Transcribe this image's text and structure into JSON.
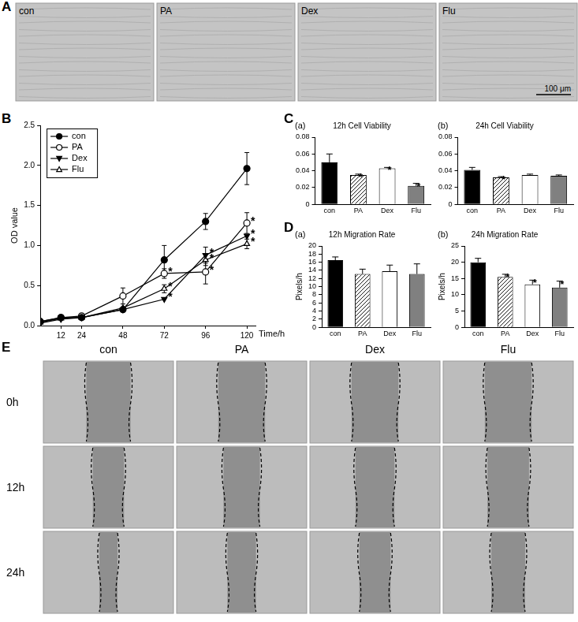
{
  "panel_a": {
    "label": "A",
    "images": [
      "con",
      "PA",
      "Dex",
      "Flu"
    ],
    "scale_bar": "100 μm"
  },
  "chart_data": [
    {
      "panel": "B",
      "type": "line",
      "x_label": "Time/h",
      "y_label": "OD value",
      "x": [
        0,
        12,
        24,
        48,
        72,
        96,
        120
      ],
      "xlim": [
        0,
        125
      ],
      "xticks": [
        12,
        24,
        48,
        72,
        96,
        120
      ],
      "ylim": [
        0,
        2.5
      ],
      "yticks": [
        {
          "value": 0,
          "label": "0.0"
        },
        0.5,
        {
          "value": 1,
          "label": "1.0"
        },
        1.5,
        {
          "value": 2,
          "label": "2.0"
        },
        2.5
      ],
      "grid": false,
      "legend": "upper left",
      "series": [
        {
          "name": "con",
          "color": "#000000",
          "marker": "circle",
          "line_style": "solid",
          "values": [
            0.05,
            0.1,
            0.1,
            0.2,
            0.82,
            1.3,
            1.96
          ],
          "errors": [
            null,
            null,
            null,
            null,
            0.18,
            0.1,
            0.2
          ]
        },
        {
          "name": "PA",
          "color": "#000000",
          "marker": "circle-open",
          "line_style": "solid",
          "values": [
            0.05,
            0.1,
            0.12,
            0.37,
            0.65,
            0.67,
            1.28
          ],
          "errors": [
            null,
            null,
            null,
            0.1,
            0.06,
            0.15,
            0.13
          ],
          "significance": [
            null,
            null,
            null,
            null,
            "*",
            "*",
            "*"
          ]
        },
        {
          "name": "Dex",
          "color": "#000000",
          "marker": "triangle-down",
          "line_style": "solid",
          "values": [
            0.03,
            0.08,
            0.1,
            0.2,
            0.33,
            0.88,
            1.12
          ],
          "errors": [
            null,
            null,
            null,
            null,
            null,
            0.1,
            null
          ],
          "significance": [
            null,
            null,
            null,
            null,
            "*",
            "*",
            "*"
          ]
        },
        {
          "name": "Flu",
          "color": "#000000",
          "marker": "triangle-open",
          "line_style": "solid",
          "values": [
            0.04,
            0.09,
            0.1,
            0.22,
            0.46,
            0.82,
            1.02
          ],
          "errors": [
            null,
            null,
            null,
            null,
            0.05,
            0.07,
            0.06
          ],
          "significance": [
            null,
            null,
            null,
            null,
            "*",
            "*",
            "*"
          ]
        }
      ]
    },
    {
      "panel": "C",
      "subpanel": "(a)",
      "type": "bar",
      "title": "12h Cell Viability",
      "categories": [
        "con",
        "PA",
        "Dex",
        "Flu"
      ],
      "values": [
        0.05,
        0.035,
        0.043,
        0.022
      ],
      "errors": [
        0.01,
        0.001,
        0.001,
        0.003
      ],
      "significance": [
        null,
        "*",
        "*",
        "*"
      ],
      "colors": [
        "#000000",
        "#ffffff",
        "#ffffff",
        "#808080"
      ],
      "ylim": [
        0,
        0.08
      ],
      "yticks": [
        0,
        0.02,
        0.04,
        0.06,
        0.08
      ],
      "grid": false
    },
    {
      "panel": "C",
      "subpanel": "(b)",
      "type": "bar",
      "title": "24h Cell Viability",
      "categories": [
        "con",
        "PA",
        "Dex",
        "Flu"
      ],
      "values": [
        0.041,
        0.032,
        0.035,
        0.034
      ],
      "errors": [
        0.003,
        0.001,
        0.001,
        0.001
      ],
      "significance": [
        null,
        "*",
        null,
        null
      ],
      "colors": [
        "#000000",
        "#ffffff",
        "#ffffff",
        "#808080"
      ],
      "ylim": [
        0,
        0.08
      ],
      "yticks": [
        0,
        0.02,
        0.04,
        0.06,
        0.08
      ],
      "grid": false
    },
    {
      "panel": "D",
      "subpanel": "(a)",
      "type": "bar",
      "title": "12h Migration Rate",
      "y_label": "Pixels/h",
      "categories": [
        "con",
        "PA",
        "Dex",
        "Flu"
      ],
      "values": [
        16.5,
        13.1,
        13.8,
        13.1
      ],
      "errors": [
        0.8,
        1.2,
        1.5,
        2.5
      ],
      "colors": [
        "#000000",
        "#ffffff",
        "#ffffff",
        "#808080"
      ],
      "ylim": [
        0,
        20
      ],
      "yticks": [
        0,
        2,
        4,
        6,
        8,
        10,
        12,
        14,
        16,
        18,
        20
      ],
      "grid": false
    },
    {
      "panel": "D",
      "subpanel": "(b)",
      "type": "bar",
      "title": "24h Migration Rate",
      "y_label": "Pixels/h",
      "categories": [
        "con",
        "PA",
        "Dex",
        "Flu"
      ],
      "values": [
        20,
        15.5,
        13.2,
        12.2
      ],
      "errors": [
        1.2,
        0.8,
        1.3,
        2
      ],
      "significance": [
        null,
        "*",
        "*",
        "*"
      ],
      "colors": [
        "#000000",
        "#ffffff",
        "#ffffff",
        "#808080"
      ],
      "ylim": [
        0,
        25
      ],
      "yticks": [
        0,
        5,
        10,
        15,
        20,
        25
      ],
      "grid": false
    }
  ],
  "panel_e": {
    "label": "E",
    "columns": [
      "con",
      "PA",
      "Dex",
      "Flu"
    ],
    "rows": [
      "0h",
      "12h",
      "24h"
    ]
  }
}
